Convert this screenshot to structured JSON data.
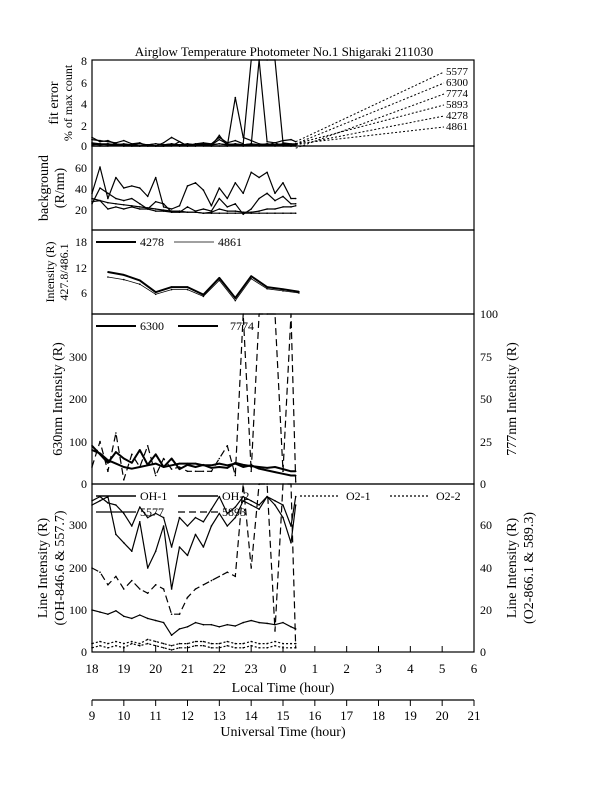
{
  "title": "Airglow Temperature Photometer No.1   Shigaraki   211030",
  "x_bottom_label": "Local Time (hour)",
  "x_utc_label": "Universal Time (hour)",
  "lt_ticks": [
    "18",
    "19",
    "20",
    "21",
    "22",
    "23",
    "0",
    "1",
    "2",
    "3",
    "4",
    "5",
    "6"
  ],
  "ut_ticks": [
    "9",
    "10",
    "11",
    "12",
    "13",
    "14",
    "15",
    "16",
    "17",
    "18",
    "19",
    "20",
    "21"
  ],
  "panels": {
    "fit": {
      "ylabel1": "fit error",
      "ylabel2": "% of max count",
      "ticks": [
        "8",
        "6",
        "4",
        "2",
        "0"
      ],
      "legend": [
        "5577",
        "6300",
        "7774",
        "5893",
        "4278",
        "4861"
      ]
    },
    "background": {
      "ylabel1": "background",
      "ylabel2": "(R/nm)",
      "ticks": [
        "60",
        "40",
        "20"
      ]
    },
    "blue": {
      "ylabel1": "Intensity (R)",
      "ylabel2": "427.8/486.1",
      "ticks": [
        "18",
        "12",
        "6"
      ],
      "legend": [
        "4278",
        "4861"
      ]
    },
    "red": {
      "ylabel_left": "630nm Intensity (R)",
      "ylabel_right": "777nm Intensity (R)",
      "ticks_left": [
        "300",
        "200",
        "100",
        "0"
      ],
      "ticks_right": [
        "100",
        "75",
        "50",
        "25",
        "0"
      ],
      "legend": [
        "6300",
        "7774"
      ]
    },
    "line": {
      "ylabel_left1": "Line Intensity (R)",
      "ylabel_left2": "(OH-846.6 & 557.7)",
      "ylabel_right1": "Line Intensity (R)",
      "ylabel_right2": "(O2-866.1 & 589.3)",
      "ticks_left": [
        "300",
        "200",
        "100",
        "0"
      ],
      "ticks_right": [
        "60",
        "40",
        "20",
        "0"
      ],
      "legend": [
        "OH-1",
        "OH-2",
        "O2-1",
        "O2-2",
        "5577",
        "5893"
      ]
    }
  },
  "chart_data": {
    "type": "line",
    "x_units": "local time (hour)",
    "x": [
      18.0,
      18.25,
      18.5,
      18.75,
      19.0,
      19.25,
      19.5,
      19.75,
      20.0,
      20.25,
      20.5,
      20.75,
      21.0,
      21.25,
      21.5,
      21.75,
      22.0,
      22.25,
      22.5,
      22.75,
      23.0,
      23.25,
      23.5,
      23.75,
      24.0,
      24.25,
      24.4
    ],
    "xlim": [
      18,
      30
    ],
    "panels": [
      {
        "name": "fit error",
        "ylim": [
          0,
          8
        ],
        "series": [
          {
            "name": "5577",
            "style": "solid",
            "values": [
              0.6,
              0.5,
              0.4,
              0.3,
              0.5,
              0.2,
              0.3,
              -0.1,
              -0.1,
              0.3,
              0.8,
              0.4,
              -0.1,
              0.2,
              0.3,
              0.2,
              0.8,
              0.3,
              0.5,
              0.2,
              8.0,
              8.0,
              0.4,
              0.3,
              0.5,
              0.6,
              0.4
            ]
          },
          {
            "name": "6300",
            "style": "solid",
            "values": [
              0.3,
              0.2,
              0.2,
              0.1,
              0.1,
              0.0,
              -0.1,
              0.0,
              0.0,
              -0.1,
              0.1,
              0.0,
              -0.2,
              -0.1,
              0.2,
              0.1,
              0.6,
              0.2,
              0.1,
              0.0,
              0.1,
              8.0,
              8.0,
              8.0,
              0.3,
              0.2,
              0.2
            ]
          },
          {
            "name": "7774",
            "style": "solid",
            "values": [
              0.8,
              0.4,
              0.5,
              0.2,
              0.0,
              -0.2,
              -0.1,
              0.1,
              -0.2,
              0.0,
              -0.1,
              0.4,
              -0.1,
              0.2,
              -0.1,
              -0.2,
              1.0,
              -0.2,
              4.5,
              0.8,
              0.5,
              0.2,
              0.1,
              0.3,
              0.0,
              -0.1,
              -0.2
            ]
          },
          {
            "name": "5893",
            "style": "solid",
            "values": [
              0.1,
              0.2,
              0.1,
              0.2,
              0.1,
              0.1,
              0.2,
              0.1,
              0.2,
              0.1,
              0.2,
              0.1,
              0.2,
              0.1,
              0.2,
              0.1,
              0.2,
              0.1,
              0.2,
              0.1,
              0.2,
              0.1,
              0.2,
              0.1,
              0.2,
              0.1,
              0.2
            ]
          },
          {
            "name": "4278",
            "style": "solid",
            "values": [
              0.0,
              -0.1,
              0.0,
              0.1,
              0.0,
              0.1,
              0.0,
              0.1,
              -0.5,
              0.0,
              0.1,
              0.0,
              0.1,
              0.0,
              0.1,
              0.0,
              -0.5,
              0.0,
              0.1,
              0.0,
              0.1,
              0.0,
              0.1,
              0.0,
              0.1,
              0.0,
              0.1
            ]
          },
          {
            "name": "4861",
            "style": "solid",
            "values": [
              0.2,
              0.1,
              0.2,
              0.1,
              0.2,
              0.1,
              0.2,
              0.1,
              0.2,
              0.1,
              0.2,
              0.1,
              0.2,
              0.1,
              0.2,
              0.1,
              0.2,
              0.1,
              0.2,
              0.1,
              0.2,
              0.1,
              0.2,
              0.1,
              0.2,
              0.1,
              0.2
            ]
          }
        ]
      },
      {
        "name": "background",
        "ylim": [
          0,
          80
        ],
        "series": [
          {
            "name": "b1",
            "style": "solid",
            "values": [
              35,
              60,
              30,
              50,
              40,
              42,
              40,
              32,
              50,
              22,
              20,
              23,
              42,
              45,
              38,
              23,
              40,
              30,
              45,
              35,
              55,
              50,
              55,
              35,
              45,
              30,
              30
            ]
          },
          {
            "name": "b2",
            "style": "solid",
            "values": [
              25,
              40,
              35,
              30,
              28,
              30,
              25,
              20,
              27,
              25,
              17,
              17,
              22,
              18,
              20,
              18,
              30,
              22,
              25,
              15,
              20,
              30,
              35,
              28,
              32,
              25,
              25
            ]
          },
          {
            "name": "b3",
            "style": "solid",
            "values": [
              27,
              28,
              20,
              22,
              20,
              22,
              20,
              20,
              18,
              18,
              17,
              17,
              17,
              17,
              16,
              17,
              20,
              18,
              18,
              17,
              17,
              18,
              20,
              20,
              22,
              22,
              23
            ]
          },
          {
            "name": "b4",
            "style": "solid",
            "values": [
              30,
              28,
              26,
              25,
              24,
              23,
              22,
              21,
              20,
              19,
              18,
              18,
              17,
              17,
              16,
              16,
              16,
              16,
              16,
              16,
              16,
              16,
              16,
              16,
              16,
              16,
              16
            ]
          }
        ]
      },
      {
        "name": "4278 / 4861",
        "ylim": [
          0,
          20
        ],
        "x": [
          18.5,
          19.0,
          19.5,
          20.0,
          20.5,
          21.0,
          21.5,
          22.0,
          22.5,
          23.0,
          23.5,
          24.0,
          24.5
        ],
        "series": [
          {
            "name": "4278",
            "style": "thick",
            "values": [
              10.0,
              9.3,
              8.0,
              5.2,
              6.4,
              6.4,
              4.6,
              8.6,
              3.8,
              9.0,
              6.4,
              5.9,
              5.3
            ]
          },
          {
            "name": "4861",
            "style": "thin",
            "values": [
              8.8,
              8.2,
              7.1,
              4.7,
              5.8,
              5.8,
              4.2,
              8.0,
              3.2,
              8.4,
              6.0,
              5.5,
              5.0
            ]
          }
        ]
      },
      {
        "name": "630 / 777",
        "ylim_left": [
          0,
          400
        ],
        "ylim_right": [
          0,
          100
        ],
        "series": [
          {
            "name": "6300",
            "axis": "left",
            "style": "thick",
            "values": [
              90,
              70,
              50,
              75,
              60,
              50,
              80,
              45,
              70,
              40,
              60,
              35,
              45,
              40,
              45,
              38,
              40,
              38,
              50,
              45,
              42,
              40,
              38,
              40,
              35,
              30,
              30
            ]
          },
          {
            "name": "7774",
            "axis": "right",
            "style": "thick",
            "values": [
              20,
              18,
              14,
              12,
              10,
              9,
              10,
              11,
              12,
              10,
              11,
              12,
              12,
              12,
              11,
              11,
              12,
              11,
              12,
              10,
              11,
              9,
              8,
              7,
              6,
              5,
              5
            ]
          },
          {
            "name": "6300-b",
            "axis": "left",
            "style": "dashed",
            "values": [
              40,
              100,
              30,
              120,
              10,
              70,
              40,
              90,
              20,
              60,
              35,
              40,
              30,
              30,
              30,
              30,
              60,
              90,
              20,
              400,
              30,
              400,
              400,
              400,
              30,
              400,
              5
            ]
          }
        ]
      },
      {
        "name": "line intensity",
        "ylim_left": [
          0,
          400
        ],
        "ylim_right": [
          0,
          80
        ],
        "series": [
          {
            "name": "OH-1",
            "axis": "left",
            "style": "solid",
            "values": [
              350,
              360,
              370,
              280,
              260,
              240,
              310,
              200,
              240,
              300,
              150,
              250,
              230,
              280,
              250,
              300,
              330,
              300,
              320,
              360,
              350,
              340,
              370,
              350,
              320,
              260,
              350
            ]
          },
          {
            "name": "OH-2",
            "axis": "left",
            "style": "solid",
            "values": [
              360,
              370,
              355,
              350,
              330,
              300,
              345,
              320,
              330,
              320,
              250,
              320,
              300,
              320,
              310,
              340,
              370,
              330,
              345,
              370,
              360,
              350,
              370,
              360,
              350,
              300,
              370
            ]
          },
          {
            "name": "O2-1",
            "axis": "right",
            "style": "dotted",
            "values": [
              4,
              5,
              4,
              5,
              4,
              5,
              4,
              6,
              5,
              4,
              3,
              4,
              4,
              5,
              5,
              4,
              4,
              5,
              4,
              4,
              5,
              4,
              4,
              5,
              4,
              4,
              4
            ]
          },
          {
            "name": "O2-2",
            "axis": "right",
            "style": "dotted",
            "values": [
              2,
              3,
              2,
              3,
              2,
              4,
              3,
              4,
              3,
              2,
              1,
              2,
              2,
              3,
              3,
              2,
              2,
              3,
              2,
              2,
              3,
              2,
              2,
              3,
              2,
              2,
              2
            ]
          },
          {
            "name": "5577",
            "axis": "left",
            "style": "solid",
            "values": [
              100,
              95,
              90,
              98,
              85,
              80,
              88,
              80,
              75,
              70,
              40,
              55,
              60,
              70,
              65,
              65,
              60,
              65,
              62,
              70,
              75,
              70,
              68,
              65,
              70,
              60,
              55
            ]
          },
          {
            "name": "5893",
            "axis": "right",
            "style": "dashed",
            "values": [
              40,
              38,
              32,
              36,
              30,
              34,
              30,
              28,
              32,
              30,
              18,
              18,
              26,
              30,
              32,
              34,
              36,
              38,
              36,
              80,
              40,
              80,
              80,
              10,
              80,
              80,
              2
            ]
          }
        ]
      }
    ]
  }
}
